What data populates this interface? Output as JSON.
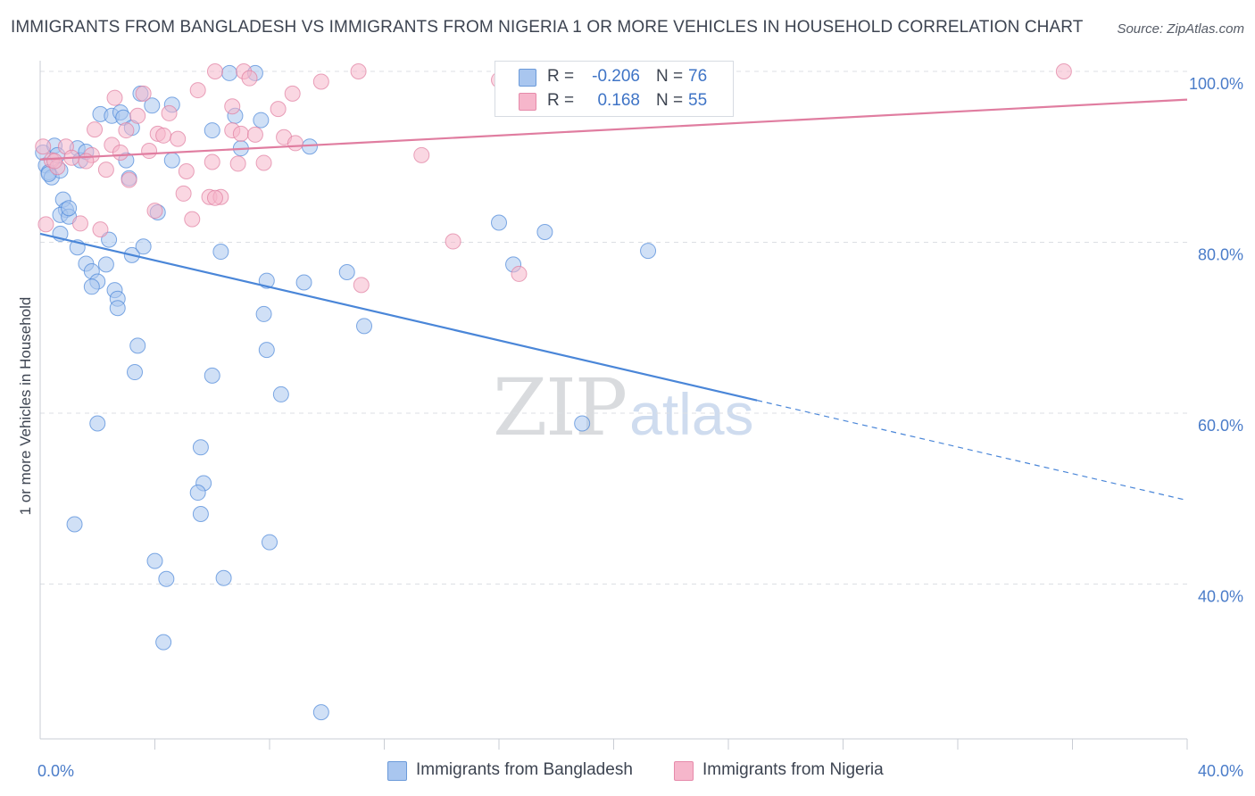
{
  "header": {
    "title": "IMMIGRANTS FROM BANGLADESH VS IMMIGRANTS FROM NIGERIA 1 OR MORE VEHICLES IN HOUSEHOLD CORRELATION CHART",
    "source": "Source: ZipAtlas.com"
  },
  "watermark": {
    "zip": "ZIP",
    "atlas": "atlas"
  },
  "legend": {
    "rows": [
      {
        "r_label": "R =",
        "r_value": "-0.206",
        "n_label": "N =",
        "n_value": "76",
        "color": "#a9c6ef"
      },
      {
        "r_label": "R =",
        "r_value": "0.168",
        "n_label": "N =",
        "n_value": "55",
        "color": "#f6b6cb"
      }
    ]
  },
  "bottom_legend": {
    "items": [
      {
        "label": "Immigrants from Bangladesh",
        "color": "#a9c6ef"
      },
      {
        "label": "Immigrants from Nigeria",
        "color": "#f6b6cb"
      }
    ]
  },
  "chart_data": {
    "type": "scatter",
    "title": "IMMIGRANTS FROM BANGLADESH VS IMMIGRANTS FROM NIGERIA 1 OR MORE VEHICLES IN HOUSEHOLD CORRELATION CHART",
    "xlabel": "",
    "ylabel": "1 or more Vehicles in Household",
    "xlim": [
      0,
      40
    ],
    "ylim": [
      22,
      104
    ],
    "x_tick_labels": [
      {
        "value": 0,
        "label": "0.0%"
      },
      {
        "value": 40,
        "label": "40.0%"
      }
    ],
    "x_minor_ticks": [
      4,
      8,
      12,
      16,
      20,
      24,
      28,
      32,
      36,
      40
    ],
    "y_ticks": [
      {
        "value": 100,
        "label": "100.0%"
      },
      {
        "value": 80,
        "label": "80.0%"
      },
      {
        "value": 60,
        "label": "60.0%"
      },
      {
        "value": 40,
        "label": "40.0%"
      }
    ],
    "grid": "horizontal dashed",
    "legend_position": "top-center",
    "series": [
      {
        "name": "Immigrants from Bangladesh",
        "color": "#4a86d8",
        "fill": "#a9c6ef",
        "r": -0.206,
        "n": 76,
        "trend": {
          "x0": 0,
          "y0": 81.0,
          "x1": 25.0,
          "y1": 61.5,
          "dashed_to_x": 40,
          "dashed_to_y": 49.8
        },
        "points": [
          [
            0.1,
            90.5
          ],
          [
            0.2,
            89.0
          ],
          [
            0.3,
            88.2
          ],
          [
            0.4,
            87.6
          ],
          [
            0.5,
            91.3
          ],
          [
            0.6,
            90.2
          ],
          [
            0.7,
            88.4
          ],
          [
            0.8,
            85.0
          ],
          [
            0.9,
            83.8
          ],
          [
            0.7,
            83.2
          ],
          [
            0.7,
            81.0
          ],
          [
            1.0,
            83.0
          ],
          [
            1.3,
            91.0
          ],
          [
            1.4,
            89.6
          ],
          [
            1.6,
            90.6
          ],
          [
            1.3,
            79.4
          ],
          [
            1.6,
            77.5
          ],
          [
            1.8,
            76.6
          ],
          [
            2.0,
            75.4
          ],
          [
            1.8,
            74.8
          ],
          [
            2.3,
            77.4
          ],
          [
            2.4,
            80.3
          ],
          [
            2.6,
            74.4
          ],
          [
            2.7,
            73.4
          ],
          [
            2.7,
            72.3
          ],
          [
            2.1,
            95.0
          ],
          [
            2.5,
            94.8
          ],
          [
            2.8,
            95.2
          ],
          [
            2.9,
            94.6
          ],
          [
            3.0,
            89.6
          ],
          [
            3.1,
            87.5
          ],
          [
            3.2,
            93.4
          ],
          [
            3.2,
            78.5
          ],
          [
            3.6,
            79.5
          ],
          [
            3.5,
            97.4
          ],
          [
            3.9,
            96.0
          ],
          [
            4.1,
            83.5
          ],
          [
            3.4,
            67.9
          ],
          [
            3.3,
            64.8
          ],
          [
            2.0,
            58.8
          ],
          [
            1.2,
            47.0
          ],
          [
            4.0,
            42.7
          ],
          [
            4.4,
            40.6
          ],
          [
            4.3,
            33.2
          ],
          [
            4.6,
            96.1
          ],
          [
            4.6,
            89.6
          ],
          [
            5.7,
            51.8
          ],
          [
            5.5,
            50.7
          ],
          [
            5.6,
            48.2
          ],
          [
            5.6,
            56.0
          ],
          [
            6.0,
            64.4
          ],
          [
            6.0,
            93.1
          ],
          [
            6.3,
            78.9
          ],
          [
            6.4,
            40.7
          ],
          [
            6.6,
            99.8
          ],
          [
            6.8,
            94.8
          ],
          [
            7.0,
            91.0
          ],
          [
            7.5,
            99.8
          ],
          [
            7.7,
            94.3
          ],
          [
            7.8,
            71.6
          ],
          [
            7.9,
            67.4
          ],
          [
            7.9,
            75.5
          ],
          [
            8.0,
            44.9
          ],
          [
            8.4,
            62.2
          ],
          [
            9.2,
            75.3
          ],
          [
            9.4,
            91.2
          ],
          [
            9.8,
            25.0
          ],
          [
            10.7,
            76.5
          ],
          [
            11.3,
            70.2
          ],
          [
            16.0,
            82.3
          ],
          [
            16.5,
            77.4
          ],
          [
            17.6,
            81.2
          ],
          [
            18.9,
            58.8
          ],
          [
            21.2,
            79.0
          ],
          [
            0.3,
            88.0
          ],
          [
            1.0,
            84.0
          ]
        ]
      },
      {
        "name": "Immigrants from Nigeria",
        "color": "#e07da0",
        "fill": "#f6b6cb",
        "r": 0.168,
        "n": 55,
        "trend": {
          "x0": 0,
          "y0": 89.7,
          "x1": 40,
          "y1": 96.7
        },
        "points": [
          [
            0.1,
            91.2
          ],
          [
            0.2,
            82.1
          ],
          [
            0.4,
            89.6
          ],
          [
            0.6,
            88.8
          ],
          [
            0.9,
            91.2
          ],
          [
            1.1,
            89.9
          ],
          [
            1.4,
            82.2
          ],
          [
            1.8,
            90.2
          ],
          [
            1.9,
            93.2
          ],
          [
            2.1,
            81.5
          ],
          [
            2.3,
            88.5
          ],
          [
            2.5,
            91.4
          ],
          [
            2.6,
            96.9
          ],
          [
            2.8,
            90.5
          ],
          [
            3.0,
            93.1
          ],
          [
            3.1,
            87.3
          ],
          [
            3.4,
            94.8
          ],
          [
            3.6,
            97.4
          ],
          [
            3.8,
            90.7
          ],
          [
            4.0,
            83.7
          ],
          [
            4.1,
            92.7
          ],
          [
            4.3,
            92.5
          ],
          [
            4.5,
            95.1
          ],
          [
            4.8,
            92.1
          ],
          [
            5.1,
            88.3
          ],
          [
            5.0,
            85.7
          ],
          [
            5.3,
            82.7
          ],
          [
            5.5,
            97.8
          ],
          [
            5.9,
            85.3
          ],
          [
            6.0,
            89.4
          ],
          [
            6.1,
            100.0
          ],
          [
            6.3,
            85.3
          ],
          [
            6.7,
            95.9
          ],
          [
            6.7,
            93.1
          ],
          [
            6.9,
            89.2
          ],
          [
            7.1,
            100.0
          ],
          [
            7.3,
            99.2
          ],
          [
            7.0,
            92.7
          ],
          [
            7.5,
            92.6
          ],
          [
            7.8,
            89.3
          ],
          [
            8.3,
            95.6
          ],
          [
            8.5,
            92.3
          ],
          [
            8.8,
            97.4
          ],
          [
            8.9,
            91.6
          ],
          [
            9.8,
            98.8
          ],
          [
            11.1,
            100.0
          ],
          [
            11.2,
            75.0
          ],
          [
            13.3,
            90.2
          ],
          [
            14.4,
            80.1
          ],
          [
            16.0,
            99.0
          ],
          [
            16.7,
            76.3
          ],
          [
            35.7,
            100.0
          ],
          [
            0.5,
            89.5
          ],
          [
            1.6,
            89.5
          ],
          [
            6.1,
            85.2
          ]
        ]
      }
    ]
  }
}
